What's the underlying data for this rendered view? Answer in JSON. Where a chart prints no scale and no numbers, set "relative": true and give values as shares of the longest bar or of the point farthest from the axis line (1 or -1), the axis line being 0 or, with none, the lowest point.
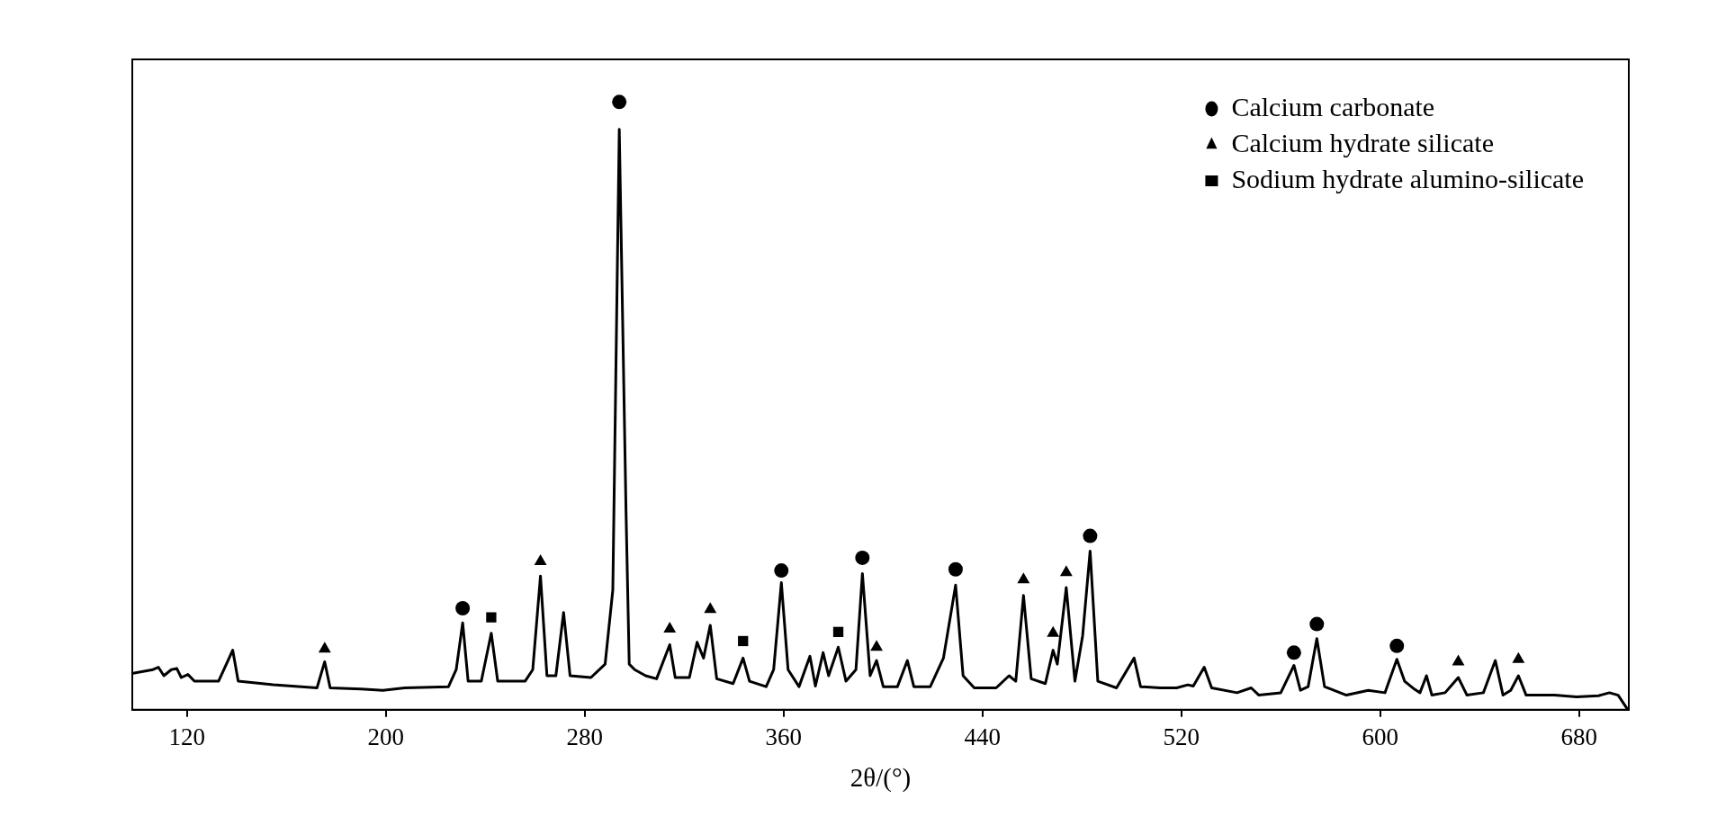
{
  "chart_data": {
    "type": "line",
    "relative": true,
    "xlabel": "2θ/(°)",
    "xlim": [
      98,
      700
    ],
    "xticks": [
      120,
      200,
      280,
      360,
      440,
      520,
      600,
      680
    ],
    "grid": false,
    "legend": "top right",
    "series": [
      {
        "color": "#000000",
        "marker": "none",
        "x": [
          98.3,
          106.3,
          108.5,
          110.7,
          113.7,
          115.9,
          117.7,
          120.4,
          123,
          132.7,
          138.4,
          140.6,
          154.7,
          172.3,
          175.4,
          177.6,
          190,
          198.8,
          207.6,
          225.2,
          228.3,
          230.9,
          233.1,
          238.4,
          242.4,
          245,
          256,
          259.1,
          262.2,
          264.8,
          268.4,
          271.5,
          274.1,
          282.5,
          288.2,
          291.3,
          293.9,
          296.6,
          297.9,
          300.1,
          304.5,
          308.9,
          314.2,
          316.4,
          322.1,
          325.2,
          327.8,
          330.5,
          333.1,
          339.7,
          343.7,
          346.3,
          353,
          356,
          359.1,
          361.8,
          366.2,
          370.6,
          372.8,
          375.9,
          378.1,
          382,
          385.1,
          389.1,
          391.7,
          394.8,
          397.4,
          400.1,
          405.8,
          409.8,
          412.4,
          419,
          424.3,
          429.2,
          432.2,
          436.7,
          445.5,
          450.7,
          453.4,
          456.5,
          459.6,
          465.3,
          468.4,
          470.1,
          473.7,
          477.2,
          480.3,
          483.3,
          486.4,
          493.9,
          501,
          503.6,
          511.5,
          518.1,
          522.6,
          524.8,
          529.2,
          532.2,
          542.4,
          548.1,
          551.2,
          560,
          565.3,
          567.9,
          571,
          574.5,
          577.6,
          586.4,
          595.2,
          601.9,
          606.7,
          609.8,
          613.7,
          616,
          618.6,
          620.8,
          626.1,
          631.4,
          634.9,
          641.5,
          646.3,
          649.4,
          652.5,
          655.6,
          658.7,
          670.1,
          679,
          687.8,
          692.2,
          695.7,
          699.6
        ],
        "values": [
          0.06,
          0.066,
          0.07,
          0.056,
          0.066,
          0.068,
          0.053,
          0.058,
          0.047,
          0.047,
          0.098,
          0.047,
          0.041,
          0.036,
          0.079,
          0.036,
          0.034,
          0.032,
          0.036,
          0.038,
          0.066,
          0.143,
          0.047,
          0.047,
          0.126,
          0.047,
          0.047,
          0.066,
          0.22,
          0.056,
          0.056,
          0.16,
          0.056,
          0.053,
          0.075,
          0.197,
          0.955,
          0.329,
          0.075,
          0.066,
          0.056,
          0.051,
          0.107,
          0.053,
          0.053,
          0.111,
          0.085,
          0.139,
          0.051,
          0.043,
          0.085,
          0.047,
          0.038,
          0.066,
          0.209,
          0.066,
          0.038,
          0.088,
          0.039,
          0.094,
          0.056,
          0.103,
          0.047,
          0.066,
          0.224,
          0.056,
          0.081,
          0.038,
          0.038,
          0.081,
          0.038,
          0.038,
          0.085,
          0.205,
          0.056,
          0.036,
          0.036,
          0.056,
          0.047,
          0.188,
          0.051,
          0.043,
          0.098,
          0.075,
          0.201,
          0.047,
          0.122,
          0.261,
          0.047,
          0.036,
          0.085,
          0.038,
          0.036,
          0.036,
          0.041,
          0.039,
          0.07,
          0.036,
          0.028,
          0.036,
          0.024,
          0.028,
          0.073,
          0.032,
          0.038,
          0.117,
          0.038,
          0.024,
          0.032,
          0.028,
          0.083,
          0.047,
          0.034,
          0.028,
          0.056,
          0.024,
          0.028,
          0.053,
          0.024,
          0.028,
          0.081,
          0.024,
          0.032,
          0.056,
          0.024,
          0.024,
          0.021,
          0.023,
          0.028,
          0.024,
          0
        ]
      },
      {
        "type": "scatter",
        "name": "Calcium carbonate",
        "color": "#000000",
        "marker": "circle",
        "x": [
          230.9,
          293.9,
          359.1,
          391.7,
          429.2,
          483.3,
          565.3,
          574.5,
          606.7
        ],
        "values": [
          0.167,
          1,
          0.229,
          0.25,
          0.231,
          0.286,
          0.094,
          0.141,
          0.105
        ]
      },
      {
        "type": "scatter",
        "name": "Calcium hydrate silicate",
        "color": "#000000",
        "marker": "triangle",
        "x": [
          175.4,
          262.2,
          314.2,
          330.5,
          397.4,
          456.5,
          468.4,
          473.7,
          631.4,
          655.6
        ],
        "values": [
          0.1,
          0.244,
          0.133,
          0.165,
          0.103,
          0.214,
          0.126,
          0.226,
          0.079,
          0.083
        ]
      },
      {
        "type": "scatter",
        "name": "Sodium hydrate alumino-silicate",
        "color": "#000000",
        "marker": "square",
        "x": [
          242.4,
          343.7,
          382
        ],
        "values": [
          0.152,
          0.113,
          0.128
        ]
      }
    ]
  }
}
